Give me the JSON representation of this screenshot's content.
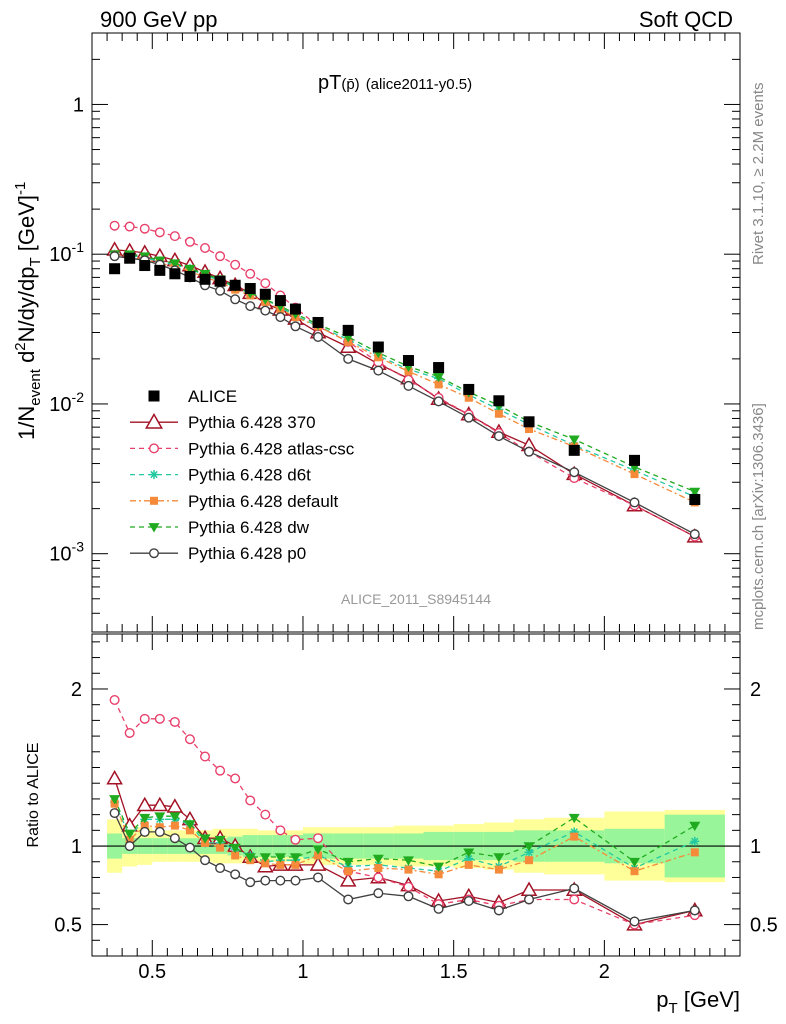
{
  "header": {
    "left_title": "900 GeV pp",
    "right_title": "Soft QCD",
    "side_rivet": "Rivet 3.1.10, ≥ 2.2M events",
    "side_mcplots": "mcplots.cern.ch [arXiv:1306.3436]",
    "analysis_id": "ALICE_2011_S8945144"
  },
  "colors": {
    "ALICE": "#000000",
    "p370": "#a31225",
    "atlas_csc": "#e8406b",
    "d6t": "#22c9a0",
    "default": "#f58a3a",
    "dw": "#1faa1f",
    "p0": "#404040",
    "band_inner": "#99f599",
    "band_outer": "#ffff99"
  },
  "chart_data": [
    {
      "type": "scatter",
      "title": "pT(p̄) (alice2011-y0.5)",
      "title_main": "pT",
      "title_particle": "(p̄)",
      "title_tag": "(alice2011-y0.5)",
      "ylabel": "1/N_event d²N/dy/dp_T [GeV]⁻¹",
      "ylabel_parts": {
        "pre": "1/N",
        "sub1": "event",
        "mid": " d",
        "sup": "2",
        "post": "N/dy/dp",
        "sub2": "T",
        "unit": " [GeV]",
        "unit_sup": "-1"
      },
      "yscale": "log",
      "ylim": [
        0.0003,
        3.0
      ],
      "xlim": [
        0.3,
        2.45
      ],
      "yticks": [
        {
          "value": 0.001,
          "base": "10",
          "exp": "-3"
        },
        {
          "value": 0.01,
          "base": "10",
          "exp": "-2"
        },
        {
          "value": 0.1,
          "base": "10",
          "exp": "-1"
        },
        {
          "value": 1,
          "base": "1",
          "exp": ""
        }
      ],
      "legend_position": "left-middle",
      "x": [
        0.375,
        0.425,
        0.475,
        0.525,
        0.575,
        0.625,
        0.675,
        0.725,
        0.775,
        0.825,
        0.875,
        0.925,
        0.975,
        1.05,
        1.15,
        1.25,
        1.35,
        1.45,
        1.55,
        1.65,
        1.75,
        1.9,
        2.1,
        2.3
      ],
      "series": [
        {
          "name": "ALICE",
          "key": "ALICE",
          "style": "square",
          "dash": "",
          "values": [
            0.08,
            0.094,
            0.084,
            0.078,
            0.074,
            0.071,
            0.068,
            0.066,
            0.062,
            0.059,
            0.054,
            0.049,
            0.043,
            0.035,
            0.031,
            0.024,
            0.0195,
            0.0175,
            0.0125,
            0.0105,
            0.0076,
            0.0049,
            0.0042,
            0.0023
          ]
        },
        {
          "name": "Pythia 6.428 370",
          "key": "p370",
          "style": "triangle-up-open",
          "dash": "",
          "values": [
            0.107,
            0.105,
            0.102,
            0.097,
            0.091,
            0.084,
            0.076,
            0.069,
            0.062,
            0.055,
            0.047,
            0.0425,
            0.037,
            0.03,
            0.024,
            0.0185,
            0.0148,
            0.0108,
            0.0085,
            0.0065,
            0.0053,
            0.0034,
            0.0021,
            0.0013
          ]
        },
        {
          "name": "Pythia 6.428 atlas-csc",
          "key": "atlas_csc",
          "style": "circle-open",
          "dash": "5,4",
          "values": [
            0.155,
            0.153,
            0.148,
            0.14,
            0.132,
            0.121,
            0.11,
            0.097,
            0.085,
            0.074,
            0.064,
            0.053,
            0.044,
            0.033,
            0.026,
            0.019,
            0.0145,
            0.011,
            0.0085,
            0.0064,
            0.0048,
            0.0032,
            0.0021,
            0.0013
          ]
        },
        {
          "name": "Pythia 6.428 d6t",
          "key": "d6t",
          "style": "asterisk",
          "dash": "5,4",
          "values": [
            0.1,
            0.098,
            0.095,
            0.089,
            0.085,
            0.08,
            0.072,
            0.067,
            0.06,
            0.055,
            0.05,
            0.044,
            0.039,
            0.033,
            0.027,
            0.021,
            0.017,
            0.0148,
            0.0115,
            0.0092,
            0.0073,
            0.0053,
            0.0036,
            0.0024
          ]
        },
        {
          "name": "Pythia 6.428 default",
          "key": "default",
          "style": "square-small",
          "dash": "6,3,2,3",
          "values": [
            0.1,
            0.096,
            0.093,
            0.087,
            0.083,
            0.077,
            0.07,
            0.065,
            0.058,
            0.053,
            0.048,
            0.043,
            0.038,
            0.033,
            0.026,
            0.0205,
            0.0165,
            0.0135,
            0.011,
            0.0086,
            0.0068,
            0.0052,
            0.0034,
            0.0022
          ]
        },
        {
          "name": "Pythia 6.428 dw",
          "key": "dw",
          "style": "triangle-down-filled",
          "dash": "5,4",
          "values": [
            0.1,
            0.1,
            0.097,
            0.091,
            0.087,
            0.08,
            0.074,
            0.068,
            0.061,
            0.055,
            0.05,
            0.045,
            0.04,
            0.034,
            0.028,
            0.022,
            0.0178,
            0.0152,
            0.012,
            0.0098,
            0.0076,
            0.0058,
            0.0038,
            0.0026
          ]
        },
        {
          "name": "Pythia 6.428 p0",
          "key": "p0",
          "style": "circle-open",
          "dash": "",
          "values": [
            0.097,
            0.094,
            0.091,
            0.085,
            0.078,
            0.07,
            0.062,
            0.057,
            0.05,
            0.045,
            0.042,
            0.038,
            0.033,
            0.028,
            0.02,
            0.0167,
            0.0132,
            0.0104,
            0.0081,
            0.0061,
            0.0048,
            0.0035,
            0.0022,
            0.00135
          ]
        }
      ]
    },
    {
      "type": "line",
      "ylabel": "Ratio to ALICE",
      "xlabel": "p_T [GeV]",
      "xlabel_parts": {
        "pre": "p",
        "sub": "T",
        "post": " [GeV]"
      },
      "ylim": [
        0.3,
        2.35
      ],
      "xlim": [
        0.3,
        2.45
      ],
      "yticks": [
        0.5,
        1,
        2
      ],
      "ytick_labels": [
        "0.5",
        "1",
        "2"
      ],
      "xticks": [
        0.5,
        1,
        1.5,
        2
      ],
      "xtick_labels": [
        "0.5",
        "1",
        "1.5",
        "2"
      ],
      "reference_line": 1,
      "band_edges": [
        0.35,
        0.4,
        0.45,
        0.5,
        0.55,
        0.6,
        0.65,
        0.7,
        0.75,
        0.8,
        0.85,
        0.9,
        0.95,
        1.0,
        1.1,
        1.2,
        1.3,
        1.4,
        1.5,
        1.6,
        1.7,
        1.8,
        2.0,
        2.2,
        2.4
      ],
      "band_inner": [
        0.08,
        0.05,
        0.05,
        0.05,
        0.05,
        0.05,
        0.05,
        0.05,
        0.06,
        0.07,
        0.07,
        0.07,
        0.07,
        0.08,
        0.08,
        0.08,
        0.08,
        0.09,
        0.09,
        0.09,
        0.1,
        0.1,
        0.11,
        0.2
      ],
      "band_outer": [
        0.17,
        0.13,
        0.12,
        0.1,
        0.1,
        0.1,
        0.1,
        0.11,
        0.11,
        0.11,
        0.1,
        0.1,
        0.1,
        0.12,
        0.12,
        0.12,
        0.13,
        0.13,
        0.14,
        0.15,
        0.17,
        0.18,
        0.22,
        0.23
      ],
      "series": [
        {
          "key": "p370",
          "values": [
            1.43,
            1.13,
            1.26,
            1.26,
            1.25,
            1.17,
            1.05,
            1.05,
            1.0,
            0.93,
            0.87,
            0.88,
            0.88,
            0.88,
            0.78,
            0.8,
            0.75,
            0.65,
            0.68,
            0.64,
            0.72,
            0.72,
            0.5,
            0.59
          ]
        },
        {
          "key": "atlas_csc",
          "values": [
            1.93,
            1.72,
            1.81,
            1.81,
            1.79,
            1.68,
            1.57,
            1.48,
            1.43,
            1.29,
            1.2,
            1.1,
            1.04,
            1.05,
            0.84,
            0.8,
            0.74,
            0.63,
            0.66,
            0.62,
            0.66,
            0.66,
            0.5,
            0.56
          ]
        },
        {
          "key": "d6t",
          "values": [
            1.28,
            1.06,
            1.17,
            1.17,
            1.17,
            1.14,
            1.02,
            1.02,
            0.98,
            0.94,
            0.9,
            0.91,
            0.91,
            0.94,
            0.87,
            0.88,
            0.86,
            0.84,
            0.92,
            0.87,
            0.96,
            1.09,
            0.86,
            1.03
          ]
        },
        {
          "key": "default",
          "values": [
            1.27,
            1.04,
            1.13,
            1.12,
            1.13,
            1.1,
            1.02,
            0.99,
            0.94,
            0.91,
            0.89,
            0.88,
            0.88,
            0.94,
            0.84,
            0.86,
            0.85,
            0.82,
            0.88,
            0.85,
            0.91,
            1.06,
            0.84,
            0.96
          ]
        },
        {
          "key": "dw",
          "values": [
            1.3,
            1.08,
            1.18,
            1.19,
            1.19,
            1.14,
            1.05,
            1.04,
            0.99,
            0.93,
            0.93,
            0.93,
            0.93,
            0.98,
            0.9,
            0.92,
            0.91,
            0.87,
            0.96,
            0.93,
            1.0,
            1.18,
            0.9,
            1.13
          ]
        },
        {
          "key": "p0",
          "values": [
            1.21,
            1.0,
            1.09,
            1.09,
            1.05,
            0.99,
            0.91,
            0.86,
            0.82,
            0.77,
            0.78,
            0.78,
            0.78,
            0.8,
            0.66,
            0.7,
            0.68,
            0.6,
            0.65,
            0.59,
            0.66,
            0.73,
            0.52,
            0.59
          ]
        }
      ],
      "errors_last": {
        "atlas_csc": 0.03,
        "default": 0.02,
        "p0": 0.02,
        "p370": 0.02
      }
    }
  ]
}
